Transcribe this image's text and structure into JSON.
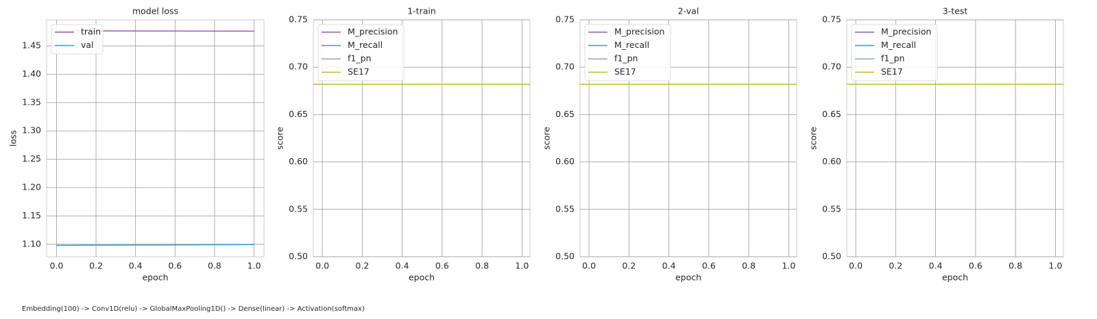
{
  "chart_data": [
    {
      "type": "line",
      "title": "model loss",
      "xlabel": "epoch",
      "ylabel": "loss",
      "x": [
        0,
        1
      ],
      "series": [
        {
          "name": "train",
          "color": "#9b59b6",
          "values": [
            1.4766,
            1.476
          ]
        },
        {
          "name": "val",
          "color": "#3498db",
          "values": [
            1.098,
            1.0995
          ]
        }
      ],
      "xlim": [
        -0.05,
        1.05
      ],
      "xticks": [
        {
          "value": 0,
          "label": "0.0"
        },
        {
          "value": 0.2,
          "label": "0.2"
        },
        {
          "value": 0.4,
          "label": "0.4"
        },
        {
          "value": 0.6,
          "label": "0.6"
        },
        {
          "value": 0.8,
          "label": "0.8"
        },
        {
          "value": 1,
          "label": "1.0"
        }
      ],
      "ylim": [
        1.078,
        1.496
      ],
      "yticks": [
        {
          "value": 1.1,
          "label": "1.10"
        },
        {
          "value": 1.15,
          "label": "1.15"
        },
        {
          "value": 1.2,
          "label": "1.20"
        },
        {
          "value": 1.25,
          "label": "1.25"
        },
        {
          "value": 1.3,
          "label": "1.30"
        },
        {
          "value": 1.35,
          "label": "1.35"
        },
        {
          "value": 1.4,
          "label": "1.40"
        },
        {
          "value": 1.45,
          "label": "1.45"
        }
      ],
      "grid": true,
      "legend": "upper left"
    },
    {
      "type": "line",
      "title": "1-train",
      "xlabel": "epoch",
      "ylabel": "score",
      "x": [
        0,
        1
      ],
      "series": [
        {
          "name": "M_precision",
          "color": "#9b59b6",
          "values": [
            null,
            null
          ]
        },
        {
          "name": "M_recall",
          "color": "#3498db",
          "values": [
            null,
            null
          ]
        },
        {
          "name": "f1_pn",
          "color": "#95a5a6",
          "values": [
            null,
            null
          ]
        },
        {
          "name": "SE17",
          "color": "#bcbd22",
          "value": 0.682
        }
      ],
      "xlim": [
        -0.045,
        1.04
      ],
      "xticks": [
        {
          "value": 0,
          "label": "0.0"
        },
        {
          "value": 0.2,
          "label": "0.2"
        },
        {
          "value": 0.4,
          "label": "0.4"
        },
        {
          "value": 0.6,
          "label": "0.6"
        },
        {
          "value": 0.8,
          "label": "0.8"
        },
        {
          "value": 1,
          "label": "1.0"
        }
      ],
      "ylim": [
        0.5,
        0.75
      ],
      "yticks": [
        {
          "value": 0.5,
          "label": "0.50"
        },
        {
          "value": 0.55,
          "label": "0.55"
        },
        {
          "value": 0.6,
          "label": "0.60"
        },
        {
          "value": 0.65,
          "label": "0.65"
        },
        {
          "value": 0.7,
          "label": "0.70"
        },
        {
          "value": 0.75,
          "label": "0.75"
        }
      ],
      "grid": true,
      "legend": "upper left"
    },
    {
      "type": "line",
      "title": "2-val",
      "xlabel": "epoch",
      "ylabel": "score",
      "x": [
        0,
        1
      ],
      "series": [
        {
          "name": "M_precision",
          "color": "#9b59b6",
          "values": [
            null,
            null
          ]
        },
        {
          "name": "M_recall",
          "color": "#3498db",
          "values": [
            null,
            null
          ]
        },
        {
          "name": "f1_pn",
          "color": "#95a5a6",
          "values": [
            null,
            null
          ]
        },
        {
          "name": "SE17",
          "color": "#bcbd22",
          "value": 0.682
        }
      ],
      "xlim": [
        -0.045,
        1.04
      ],
      "xticks": [
        {
          "value": 0,
          "label": "0.0"
        },
        {
          "value": 0.2,
          "label": "0.2"
        },
        {
          "value": 0.4,
          "label": "0.4"
        },
        {
          "value": 0.6,
          "label": "0.6"
        },
        {
          "value": 0.8,
          "label": "0.8"
        },
        {
          "value": 1,
          "label": "1.0"
        }
      ],
      "ylim": [
        0.5,
        0.75
      ],
      "yticks": [
        {
          "value": 0.5,
          "label": "0.50"
        },
        {
          "value": 0.55,
          "label": "0.55"
        },
        {
          "value": 0.6,
          "label": "0.60"
        },
        {
          "value": 0.65,
          "label": "0.65"
        },
        {
          "value": 0.7,
          "label": "0.70"
        },
        {
          "value": 0.75,
          "label": "0.75"
        }
      ],
      "grid": true,
      "legend": "upper left"
    },
    {
      "type": "line",
      "title": "3-test",
      "xlabel": "epoch",
      "ylabel": "score",
      "x": [
        0,
        1
      ],
      "series": [
        {
          "name": "M_precision",
          "color": "#9b59b6",
          "values": [
            null,
            null
          ]
        },
        {
          "name": "M_recall",
          "color": "#3498db",
          "values": [
            null,
            null
          ]
        },
        {
          "name": "f1_pn",
          "color": "#95a5a6",
          "values": [
            null,
            null
          ]
        },
        {
          "name": "SE17",
          "color": "#bcbd22",
          "value": 0.682
        }
      ],
      "xlim": [
        -0.045,
        1.04
      ],
      "xticks": [
        {
          "value": 0,
          "label": "0.0"
        },
        {
          "value": 0.2,
          "label": "0.2"
        },
        {
          "value": 0.4,
          "label": "0.4"
        },
        {
          "value": 0.6,
          "label": "0.6"
        },
        {
          "value": 0.8,
          "label": "0.8"
        },
        {
          "value": 1,
          "label": "1.0"
        }
      ],
      "ylim": [
        0.5,
        0.75
      ],
      "yticks": [
        {
          "value": 0.5,
          "label": "0.50"
        },
        {
          "value": 0.55,
          "label": "0.55"
        },
        {
          "value": 0.6,
          "label": "0.60"
        },
        {
          "value": 0.65,
          "label": "0.65"
        },
        {
          "value": 0.7,
          "label": "0.70"
        },
        {
          "value": 0.75,
          "label": "0.75"
        }
      ],
      "grid": true,
      "legend": "upper left"
    }
  ],
  "caption": "Embedding(100) -> Conv1D(relu) -> GlobalMaxPooling1D() -> Dense(linear) -> Activation(softmax)"
}
